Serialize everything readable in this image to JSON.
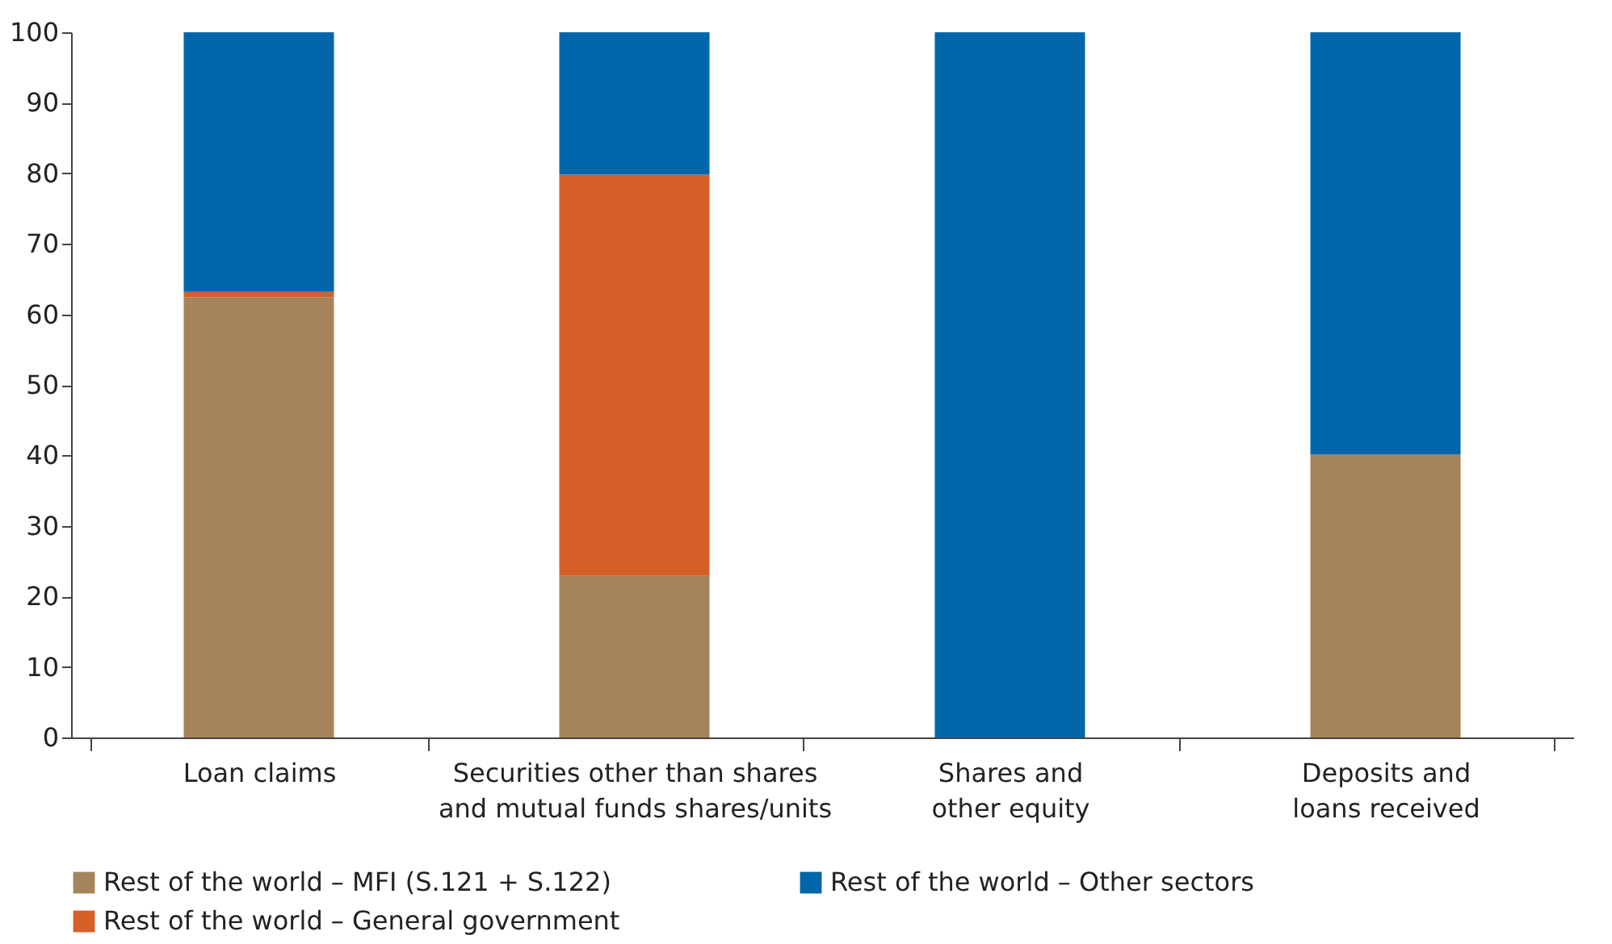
{
  "chart_data": {
    "type": "bar",
    "stacked": true,
    "categories": [
      "Loan claims",
      "Securities other than shares\nand mutual funds shares/units",
      "Shares and\nother equity",
      "Deposits and\nloans received"
    ],
    "series": [
      {
        "name": "Rest of the world – MFI (S.121 + S.122)",
        "color": "#a6845b",
        "values": [
          62.4,
          22.9,
          0,
          40.1
        ]
      },
      {
        "name": "Rest of the world – General government",
        "color": "#d46027",
        "values": [
          0.8,
          56.9,
          0,
          0
        ]
      },
      {
        "name": "Rest of the world – Other sectors",
        "color": "#0066a9",
        "values": [
          36.8,
          20.2,
          100,
          59.9
        ]
      }
    ],
    "ylim": [
      0,
      100
    ],
    "yticks": [
      0,
      10,
      20,
      30,
      40,
      50,
      60,
      70,
      80,
      90,
      100
    ],
    "grid": false,
    "legend": "bottom"
  }
}
